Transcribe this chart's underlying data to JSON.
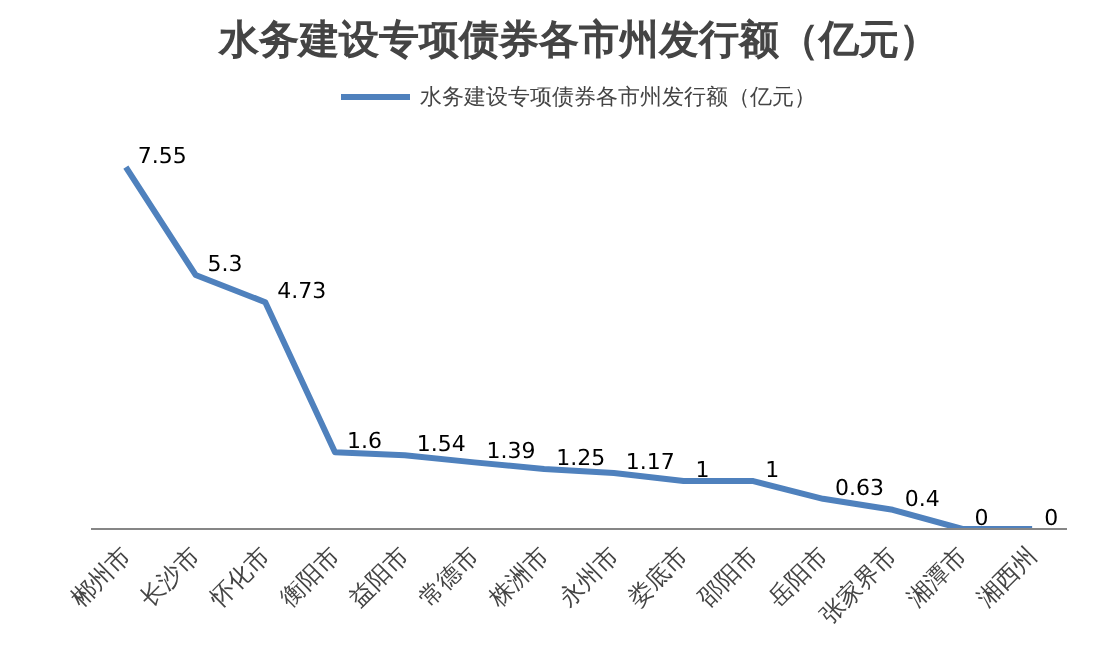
{
  "chart_data": {
    "type": "line",
    "title": "水务建设专项债券各市州发行额（亿元）",
    "categories": [
      "郴州市",
      "长沙市",
      "怀化市",
      "衡阳市",
      "益阳市",
      "常德市",
      "株洲市",
      "永州市",
      "娄底市",
      "邵阳市",
      "岳阳市",
      "张家界市",
      "湘潭市",
      "湘西州"
    ],
    "series": [
      {
        "name": "水务建设专项债券各市州发行额（亿元）",
        "color": "#4f81bd",
        "values": [
          7.55,
          5.3,
          4.73,
          1.6,
          1.54,
          1.39,
          1.25,
          1.17,
          1,
          1,
          0.63,
          0.4,
          0,
          0
        ]
      }
    ],
    "data_labels": true,
    "legend": "top",
    "grid": false,
    "marker": "none",
    "line_style": "solid",
    "tick_labels": "x"
  }
}
